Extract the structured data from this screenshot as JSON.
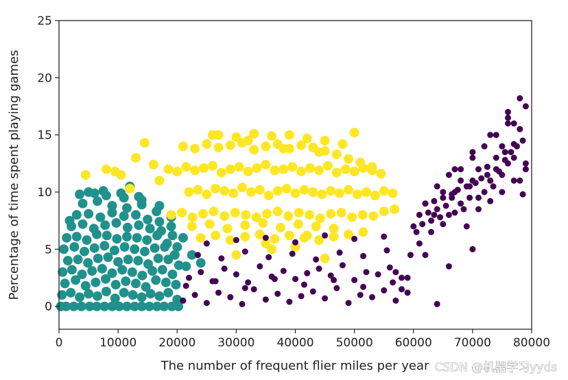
{
  "chart_data": {
    "type": "scatter",
    "xlabel": "The number of frequent flier miles per year",
    "ylabel": "Percentage of time spent playing games",
    "xlim": [
      0,
      80000
    ],
    "ylim": [
      -2,
      25
    ],
    "xticks": [
      0,
      10000,
      20000,
      30000,
      40000,
      50000,
      60000,
      70000,
      80000
    ],
    "yticks": [
      0,
      5,
      10,
      15,
      20,
      25
    ],
    "xtick_labels": [
      "0",
      "10000",
      "20000",
      "30000",
      "40000",
      "50000",
      "60000",
      "70000",
      "80000"
    ],
    "ytick_labels": [
      "0",
      "5",
      "10",
      "15",
      "20",
      "25"
    ],
    "grid": false,
    "colors": {
      "cluster_teal": "#21918c",
      "cluster_yellow": "#fde725",
      "cluster_purple": "#440154"
    },
    "series": [
      {
        "color": "#21918c",
        "marker_size": "large",
        "x": [
          300,
          1200,
          2500,
          3800,
          5200,
          6400,
          7700,
          9000,
          10200,
          11500,
          12800,
          14000,
          15300,
          16600,
          17800,
          19100,
          20200,
          500,
          2000,
          3500,
          5000,
          6500,
          8000,
          9500,
          11000,
          12500,
          14000,
          15500,
          17000,
          18500,
          20000,
          1000,
          2800,
          4500,
          6200,
          7900,
          9600,
          11300,
          13000,
          14700,
          16400,
          18100,
          19800,
          600,
          2200,
          3900,
          5600,
          7300,
          9000,
          10700,
          12400,
          14100,
          15800,
          17500,
          19200,
          1500,
          3200,
          4900,
          6600,
          8300,
          10000,
          11700,
          13400,
          15100,
          16800,
          18500,
          20300,
          800,
          2600,
          4300,
          6000,
          7700,
          9400,
          11100,
          12800,
          14500,
          16200,
          17900,
          19600,
          1300,
          3000,
          4700,
          6400,
          8100,
          9800,
          11500,
          13200,
          14900,
          16600,
          18300,
          20000,
          2100,
          4000,
          5900,
          7800,
          9700,
          11600,
          13500,
          15400,
          17300,
          19200,
          3000,
          5000,
          7000,
          9000,
          11000,
          13000,
          15000,
          17000,
          19000,
          4000,
          6500,
          9000,
          11500,
          14000,
          16500,
          19000,
          5000,
          8000,
          11000,
          14000,
          17000,
          3500,
          7500,
          10500,
          13500,
          1800,
          6000,
          12000,
          21000,
          22500,
          24000,
          21500
        ],
        "y": [
          0,
          0,
          0,
          0,
          0,
          0,
          0,
          0,
          0,
          0,
          0,
          0,
          0,
          0,
          0,
          0,
          0,
          1,
          1.2,
          0.8,
          1.1,
          0.9,
          1.3,
          0.7,
          1.2,
          1,
          0.8,
          1.1,
          0.9,
          1.2,
          0.6,
          2,
          2.3,
          1.8,
          2.1,
          2.4,
          1.9,
          2.2,
          2,
          1.7,
          2.3,
          2.1,
          1.9,
          3,
          3.2,
          2.8,
          3.1,
          3.3,
          2.9,
          3.2,
          3,
          2.7,
          3.1,
          3.2,
          2.8,
          4,
          4.1,
          3.8,
          4.2,
          4.3,
          3.9,
          4.1,
          4,
          3.7,
          4.2,
          4.1,
          3.6,
          5,
          5.2,
          4.8,
          5.1,
          5.3,
          4.9,
          5.2,
          5,
          4.8,
          5.1,
          5.2,
          4.5,
          6,
          6.1,
          5.8,
          6.3,
          6.2,
          5.9,
          6.1,
          6,
          5.8,
          6.2,
          5.5,
          5.2,
          7,
          7.2,
          6.8,
          7.1,
          7.3,
          6.9,
          7.1,
          6.8,
          6.6,
          6.2,
          8,
          8.1,
          7.8,
          8.2,
          7.9,
          8,
          7.6,
          7.4,
          7,
          9,
          9.2,
          8.8,
          8.6,
          8.9,
          8.3,
          7.8,
          10,
          9.7,
          9.5,
          9.3,
          8.8,
          9.8,
          10.1,
          9.9,
          9.6,
          7.5,
          9.9,
          10.5,
          6,
          4.5,
          3.8,
          3.5
        ],
        "name": ""
      },
      {
        "color": "#fde725",
        "marker_size": "large",
        "x": [
          22000,
          23500,
          25000,
          26500,
          28000,
          29500,
          31000,
          32500,
          34000,
          35500,
          37000,
          38500,
          40000,
          41500,
          43000,
          44500,
          46000,
          47500,
          49000,
          50500,
          52000,
          53500,
          55000,
          56500,
          18500,
          20000,
          21500,
          23000,
          24500,
          26000,
          27500,
          29000,
          30500,
          32000,
          33500,
          35000,
          36500,
          38000,
          39500,
          41000,
          42500,
          44000,
          45500,
          47000,
          48500,
          50000,
          51500,
          53000,
          54500,
          19000,
          20800,
          22600,
          24400,
          26200,
          28000,
          29800,
          31600,
          33400,
          35200,
          37000,
          38800,
          40600,
          42400,
          44200,
          46000,
          47800,
          49600,
          51400,
          53200,
          55000,
          56800,
          21000,
          23000,
          25000,
          27000,
          29000,
          31000,
          33000,
          35000,
          37000,
          39000,
          41000,
          43000,
          45000,
          47000,
          49000,
          51000,
          53000,
          24000,
          26500,
          29000,
          31500,
          34000,
          36500,
          39000,
          41500,
          44000,
          46500,
          49000,
          51500,
          27000,
          30000,
          33000,
          36000,
          39000,
          42000,
          45000,
          48000,
          22500,
          25500,
          28500,
          31500,
          34500,
          37500,
          40500,
          43500,
          46500,
          13000,
          14500,
          16000,
          17000,
          4500,
          8000,
          9500,
          10500,
          12000,
          30000,
          35000,
          40000,
          45000,
          50000,
          26000,
          32000,
          38000,
          44000,
          36000,
          42000
        ],
        "y": [
          10,
          10.2,
          9.8,
          10.3,
          10.1,
          9.9,
          10.4,
          10,
          10.2,
          9.7,
          10.1,
          10.3,
          9.9,
          10.2,
          10,
          9.8,
          10.1,
          9.9,
          10.2,
          9.8,
          10,
          9.7,
          10.1,
          9.9,
          12,
          11.8,
          12.2,
          11.9,
          12.1,
          12.3,
          11.7,
          12,
          12.2,
          11.8,
          12.1,
          12.4,
          11.9,
          12,
          12.2,
          11.8,
          12.1,
          11.9,
          12.3,
          11.7,
          12,
          11.8,
          12.1,
          11.9,
          11.6,
          8,
          8.2,
          7.8,
          8.1,
          8.3,
          7.9,
          8.2,
          8,
          7.8,
          8.1,
          8.3,
          7.9,
          8.2,
          8,
          7.7,
          8.1,
          8.2,
          7.8,
          8,
          7.9,
          8.3,
          8.5,
          14,
          13.8,
          14.2,
          13.9,
          14.1,
          14.3,
          13.7,
          14,
          14.2,
          13.8,
          14.1,
          13.9,
          13.6,
          13.3,
          12.9,
          12.6,
          12.2,
          6,
          6.2,
          5.8,
          6.1,
          6.3,
          5.9,
          6.2,
          6,
          5.8,
          6.1,
          6.3,
          6.5,
          15,
          14.8,
          15.1,
          14.9,
          15,
          14.7,
          14.5,
          14.2,
          7,
          7.2,
          6.8,
          7.1,
          7.3,
          6.9,
          7.2,
          7,
          6.8,
          13,
          14.3,
          12.4,
          11,
          11.5,
          12,
          11.8,
          11.5,
          10.3,
          4.5,
          5.5,
          5.2,
          4.2,
          15.2,
          15,
          14.5,
          13.8,
          13.5,
          5,
          6.2
        ],
        "name": ""
      },
      {
        "color": "#440154",
        "marker_size": "small",
        "x": [
          21000,
          23000,
          25000,
          27000,
          29000,
          31000,
          33000,
          35000,
          37000,
          39000,
          41000,
          43000,
          45000,
          47000,
          49000,
          51000,
          53000,
          55000,
          57000,
          59000,
          22000,
          24000,
          26000,
          28000,
          30000,
          32000,
          34000,
          36000,
          38000,
          40000,
          42000,
          44000,
          46000,
          48000,
          50000,
          52000,
          54000,
          56000,
          58000,
          23500,
          27500,
          31500,
          35500,
          39500,
          43500,
          47500,
          51500,
          55500,
          59500,
          25000,
          30000,
          35000,
          40000,
          45000,
          50000,
          55000,
          21500,
          26500,
          31500,
          36500,
          41500,
          46500,
          51500,
          56500,
          60000,
          61000,
          62000,
          63000,
          64000,
          65000,
          66000,
          67000,
          68000,
          69000,
          70000,
          71000,
          72000,
          73000,
          74000,
          75000,
          76000,
          77000,
          78000,
          79000,
          60500,
          61500,
          62500,
          63500,
          64500,
          65500,
          66500,
          67500,
          68500,
          69500,
          70500,
          71500,
          72500,
          73500,
          74500,
          75500,
          76500,
          77500,
          78500,
          61000,
          63000,
          65000,
          67000,
          69000,
          71000,
          73000,
          75000,
          77000,
          79000,
          62000,
          64000,
          66000,
          68000,
          70000,
          72000,
          74000,
          76000,
          78000,
          63500,
          66500,
          69500,
          72500,
          75500,
          78500,
          65000,
          68000,
          71000,
          74000,
          77000,
          67000,
          70000,
          73000,
          76000,
          79000,
          64000,
          66000,
          70000,
          75000,
          76000,
          77000,
          78000,
          58000,
          57000,
          62000,
          59000
        ],
        "y": [
          0.5,
          1,
          0.3,
          1.2,
          0.8,
          0.2,
          1.5,
          0.6,
          1.1,
          0.4,
          0.9,
          1.3,
          0.7,
          1.6,
          0.3,
          1,
          0.8,
          1.4,
          0.5,
          1.2,
          2.5,
          3,
          2.2,
          3.3,
          2.8,
          2.1,
          3.5,
          2.6,
          3.1,
          2.4,
          2.9,
          3.3,
          2.7,
          3.6,
          2.3,
          3,
          2.8,
          3.4,
          2.5,
          4.5,
          4.2,
          4.8,
          4.3,
          4.6,
          4.1,
          4.7,
          4.4,
          4.9,
          4.5,
          5.5,
          5.8,
          6,
          5.6,
          6.2,
          5.9,
          6.1,
          1.8,
          2.2,
          1.6,
          2.4,
          1.9,
          2.3,
          1.7,
          2.1,
          7,
          8,
          9,
          7.5,
          8.5,
          9.5,
          8,
          10,
          9,
          10.5,
          11,
          9.5,
          10,
          11,
          12,
          11.5,
          12.5,
          13,
          11,
          12,
          6.5,
          7.2,
          8.2,
          9.2,
          7.8,
          8.8,
          9.8,
          10.2,
          8.5,
          9.5,
          10.8,
          11.2,
          12.2,
          10.5,
          11.8,
          12.8,
          13.5,
          14,
          9.8,
          5.5,
          6.5,
          7.2,
          8.2,
          7,
          8.5,
          9.2,
          10,
          11,
          12.5,
          9,
          10.5,
          11.5,
          12,
          13,
          14,
          15,
          16,
          15.5,
          8,
          9.5,
          10.5,
          11.5,
          13.5,
          14.5,
          10,
          11,
          12,
          13,
          14.2,
          12,
          13.5,
          15,
          16.5,
          17.5,
          0.2,
          3.5,
          5,
          14,
          17,
          16,
          18.2,
          1.5,
          3,
          4.5,
          2.5
        ],
        "name": ""
      }
    ]
  },
  "watermark": "CSDN @机器学习yyds"
}
